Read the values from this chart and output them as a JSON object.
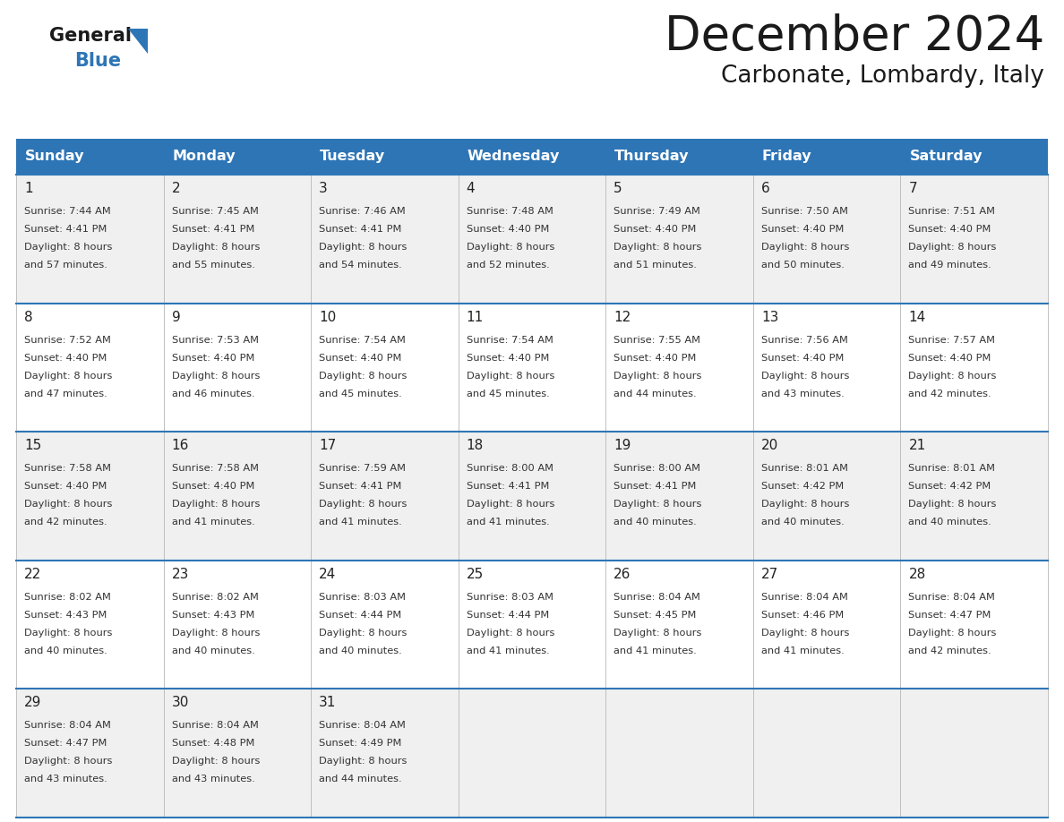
{
  "title": "December 2024",
  "subtitle": "Carbonate, Lombardy, Italy",
  "header_color": "#2E75B6",
  "header_text_color": "#FFFFFF",
  "background_color": "#FFFFFF",
  "cell_bg_even": "#F0F0F0",
  "cell_bg_odd": "#FFFFFF",
  "day_names": [
    "Sunday",
    "Monday",
    "Tuesday",
    "Wednesday",
    "Thursday",
    "Friday",
    "Saturday"
  ],
  "weeks": [
    [
      {
        "day": 1,
        "sunrise": "7:44 AM",
        "sunset": "4:41 PM",
        "daylight": "8 hours and 57 minutes."
      },
      {
        "day": 2,
        "sunrise": "7:45 AM",
        "sunset": "4:41 PM",
        "daylight": "8 hours and 55 minutes."
      },
      {
        "day": 3,
        "sunrise": "7:46 AM",
        "sunset": "4:41 PM",
        "daylight": "8 hours and 54 minutes."
      },
      {
        "day": 4,
        "sunrise": "7:48 AM",
        "sunset": "4:40 PM",
        "daylight": "8 hours and 52 minutes."
      },
      {
        "day": 5,
        "sunrise": "7:49 AM",
        "sunset": "4:40 PM",
        "daylight": "8 hours and 51 minutes."
      },
      {
        "day": 6,
        "sunrise": "7:50 AM",
        "sunset": "4:40 PM",
        "daylight": "8 hours and 50 minutes."
      },
      {
        "day": 7,
        "sunrise": "7:51 AM",
        "sunset": "4:40 PM",
        "daylight": "8 hours and 49 minutes."
      }
    ],
    [
      {
        "day": 8,
        "sunrise": "7:52 AM",
        "sunset": "4:40 PM",
        "daylight": "8 hours and 47 minutes."
      },
      {
        "day": 9,
        "sunrise": "7:53 AM",
        "sunset": "4:40 PM",
        "daylight": "8 hours and 46 minutes."
      },
      {
        "day": 10,
        "sunrise": "7:54 AM",
        "sunset": "4:40 PM",
        "daylight": "8 hours and 45 minutes."
      },
      {
        "day": 11,
        "sunrise": "7:54 AM",
        "sunset": "4:40 PM",
        "daylight": "8 hours and 45 minutes."
      },
      {
        "day": 12,
        "sunrise": "7:55 AM",
        "sunset": "4:40 PM",
        "daylight": "8 hours and 44 minutes."
      },
      {
        "day": 13,
        "sunrise": "7:56 AM",
        "sunset": "4:40 PM",
        "daylight": "8 hours and 43 minutes."
      },
      {
        "day": 14,
        "sunrise": "7:57 AM",
        "sunset": "4:40 PM",
        "daylight": "8 hours and 42 minutes."
      }
    ],
    [
      {
        "day": 15,
        "sunrise": "7:58 AM",
        "sunset": "4:40 PM",
        "daylight": "8 hours and 42 minutes."
      },
      {
        "day": 16,
        "sunrise": "7:58 AM",
        "sunset": "4:40 PM",
        "daylight": "8 hours and 41 minutes."
      },
      {
        "day": 17,
        "sunrise": "7:59 AM",
        "sunset": "4:41 PM",
        "daylight": "8 hours and 41 minutes."
      },
      {
        "day": 18,
        "sunrise": "8:00 AM",
        "sunset": "4:41 PM",
        "daylight": "8 hours and 41 minutes."
      },
      {
        "day": 19,
        "sunrise": "8:00 AM",
        "sunset": "4:41 PM",
        "daylight": "8 hours and 40 minutes."
      },
      {
        "day": 20,
        "sunrise": "8:01 AM",
        "sunset": "4:42 PM",
        "daylight": "8 hours and 40 minutes."
      },
      {
        "day": 21,
        "sunrise": "8:01 AM",
        "sunset": "4:42 PM",
        "daylight": "8 hours and 40 minutes."
      }
    ],
    [
      {
        "day": 22,
        "sunrise": "8:02 AM",
        "sunset": "4:43 PM",
        "daylight": "8 hours and 40 minutes."
      },
      {
        "day": 23,
        "sunrise": "8:02 AM",
        "sunset": "4:43 PM",
        "daylight": "8 hours and 40 minutes."
      },
      {
        "day": 24,
        "sunrise": "8:03 AM",
        "sunset": "4:44 PM",
        "daylight": "8 hours and 40 minutes."
      },
      {
        "day": 25,
        "sunrise": "8:03 AM",
        "sunset": "4:44 PM",
        "daylight": "8 hours and 41 minutes."
      },
      {
        "day": 26,
        "sunrise": "8:04 AM",
        "sunset": "4:45 PM",
        "daylight": "8 hours and 41 minutes."
      },
      {
        "day": 27,
        "sunrise": "8:04 AM",
        "sunset": "4:46 PM",
        "daylight": "8 hours and 41 minutes."
      },
      {
        "day": 28,
        "sunrise": "8:04 AM",
        "sunset": "4:47 PM",
        "daylight": "8 hours and 42 minutes."
      }
    ],
    [
      {
        "day": 29,
        "sunrise": "8:04 AM",
        "sunset": "4:47 PM",
        "daylight": "8 hours and 43 minutes."
      },
      {
        "day": 30,
        "sunrise": "8:04 AM",
        "sunset": "4:48 PM",
        "daylight": "8 hours and 43 minutes."
      },
      {
        "day": 31,
        "sunrise": "8:04 AM",
        "sunset": "4:49 PM",
        "daylight": "8 hours and 44 minutes."
      },
      null,
      null,
      null,
      null
    ]
  ],
  "logo_general_color": "#1a1a1a",
  "logo_blue_color": "#2E75B6",
  "title_color": "#1a1a1a",
  "cell_text_color": "#333333",
  "day_num_color": "#222222",
  "separator_color": "#2E75B6",
  "grid_color": "#BBBBBB"
}
